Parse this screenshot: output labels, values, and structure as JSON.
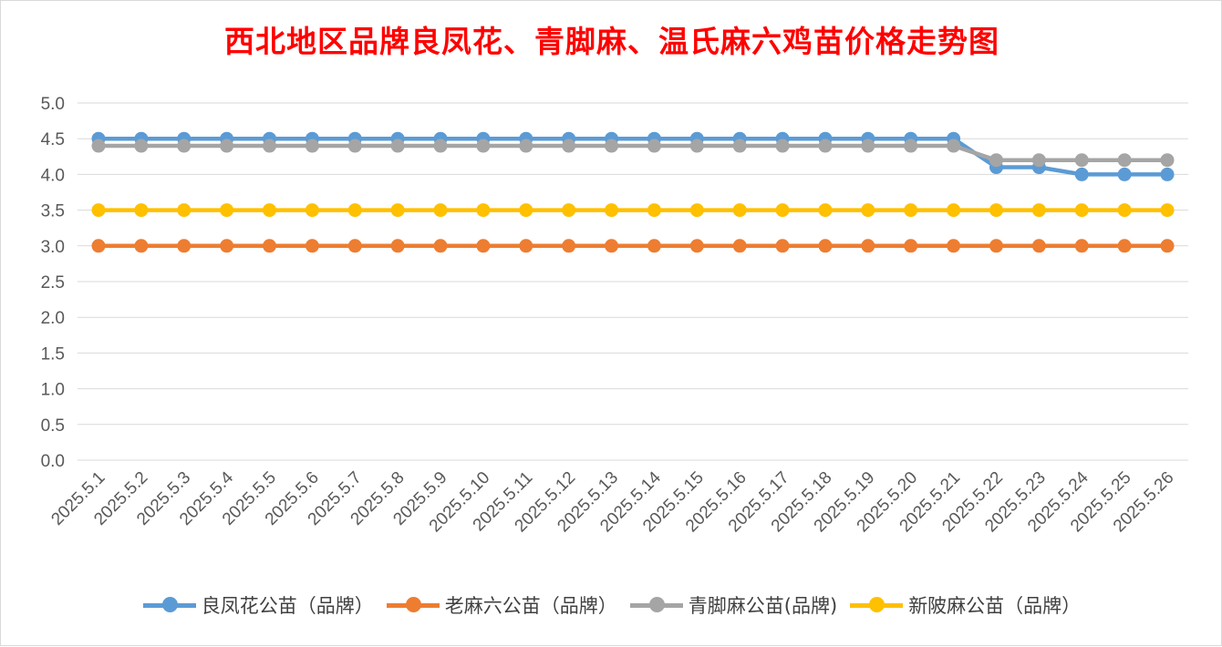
{
  "chart_data": {
    "type": "line",
    "title": "西北地区品牌良凤花、青脚麻、温氏麻六鸡苗价格走势图",
    "xlabel": "",
    "ylabel": "",
    "ylim": [
      0,
      5
    ],
    "yticks": [
      "0.0",
      "0.5",
      "1.0",
      "1.5",
      "2.0",
      "2.5",
      "3.0",
      "3.5",
      "4.0",
      "4.5",
      "5.0"
    ],
    "grid": true,
    "legend_position": "bottom",
    "categories": [
      "2025.5.1",
      "2025.5.2",
      "2025.5.3",
      "2025.5.4",
      "2025.5.5",
      "2025.5.6",
      "2025.5.7",
      "2025.5.8",
      "2025.5.9",
      "2025.5.10",
      "2025.5.11",
      "2025.5.12",
      "2025.5.13",
      "2025.5.14",
      "2025.5.15",
      "2025.5.16",
      "2025.5.17",
      "2025.5.18",
      "2025.5.19",
      "2025.5.20",
      "2025.5.21",
      "2025.5.22",
      "2025.5.23",
      "2025.5.24",
      "2025.5.25",
      "2025.5.26"
    ],
    "series": [
      {
        "name": "良凤花公苗（品牌）",
        "color": "#5b9bd5",
        "values": [
          4.5,
          4.5,
          4.5,
          4.5,
          4.5,
          4.5,
          4.5,
          4.5,
          4.5,
          4.5,
          4.5,
          4.5,
          4.5,
          4.5,
          4.5,
          4.5,
          4.5,
          4.5,
          4.5,
          4.5,
          4.5,
          4.1,
          4.1,
          4.0,
          4.0,
          4.0
        ]
      },
      {
        "name": "老麻六公苗（品牌）",
        "color": "#ed7d31",
        "values": [
          3.0,
          3.0,
          3.0,
          3.0,
          3.0,
          3.0,
          3.0,
          3.0,
          3.0,
          3.0,
          3.0,
          3.0,
          3.0,
          3.0,
          3.0,
          3.0,
          3.0,
          3.0,
          3.0,
          3.0,
          3.0,
          3.0,
          3.0,
          3.0,
          3.0,
          3.0
        ]
      },
      {
        "name": "青脚麻公苗(品牌)",
        "color": "#a5a5a5",
        "values": [
          4.4,
          4.4,
          4.4,
          4.4,
          4.4,
          4.4,
          4.4,
          4.4,
          4.4,
          4.4,
          4.4,
          4.4,
          4.4,
          4.4,
          4.4,
          4.4,
          4.4,
          4.4,
          4.4,
          4.4,
          4.4,
          4.2,
          4.2,
          4.2,
          4.2,
          4.2
        ]
      },
      {
        "name": "新陂麻公苗（品牌）",
        "color": "#ffc000",
        "values": [
          3.5,
          3.5,
          3.5,
          3.5,
          3.5,
          3.5,
          3.5,
          3.5,
          3.5,
          3.5,
          3.5,
          3.5,
          3.5,
          3.5,
          3.5,
          3.5,
          3.5,
          3.5,
          3.5,
          3.5,
          3.5,
          3.5,
          3.5,
          3.5,
          3.5,
          3.5
        ]
      }
    ]
  }
}
